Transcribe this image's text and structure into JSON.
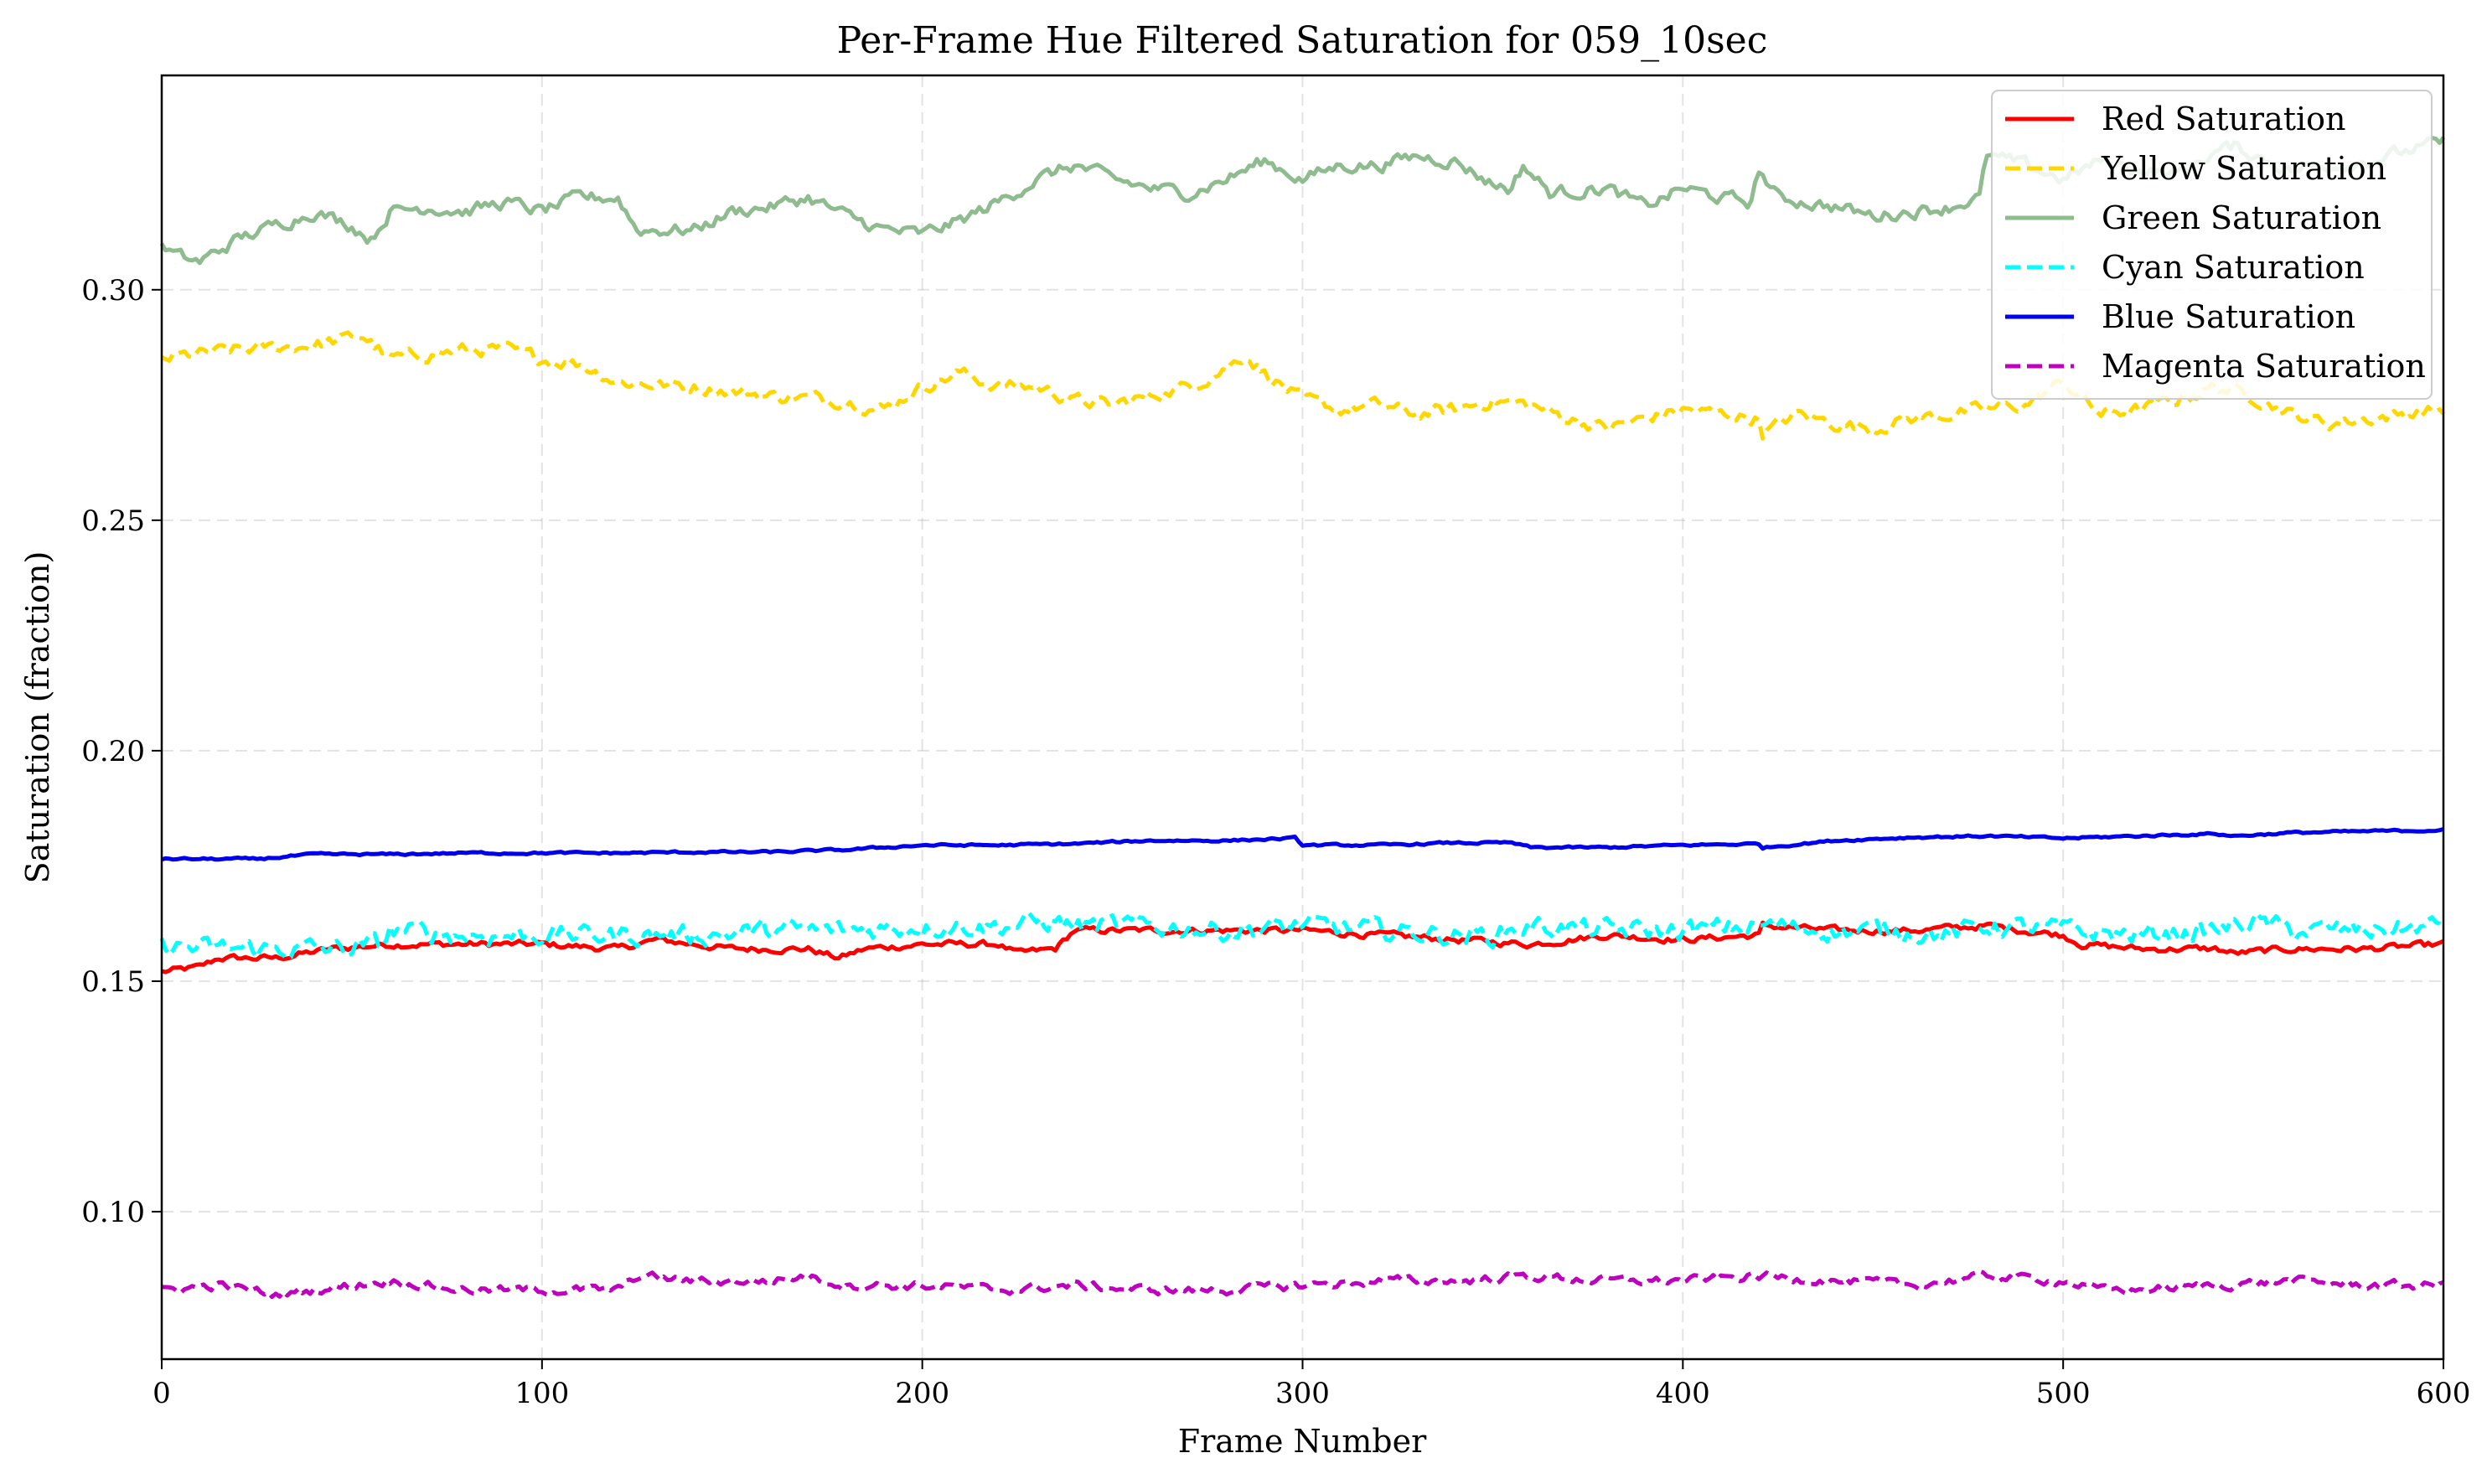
{
  "chart_data": {
    "type": "line",
    "title": "Per-Frame Hue Filtered Saturation for 059_10sec",
    "xlabel": "Frame Number",
    "ylabel": "Saturation (fraction)",
    "xlim": [
      0,
      600
    ],
    "ylim": [
      0.068,
      0.3465
    ],
    "xticks": [
      0,
      100,
      200,
      300,
      400,
      500,
      600
    ],
    "yticks": [
      0.1,
      0.15,
      0.2,
      0.25,
      0.3
    ],
    "xtick_labels": [
      "0",
      "100",
      "200",
      "300",
      "400",
      "500",
      "600"
    ],
    "ytick_labels": [
      "0.10",
      "0.15",
      "0.20",
      "0.25",
      "0.30"
    ],
    "grid": true,
    "legend_position": "top-right",
    "series": [
      {
        "name": "Red Saturation",
        "color": "#ff0000",
        "dash": "solid",
        "noise": 0.0006,
        "x": [
          0,
          10,
          15,
          30,
          45,
          60,
          90,
          100,
          120,
          130,
          150,
          170,
          178,
          185,
          200,
          220,
          225,
          235,
          240,
          260,
          280,
          300,
          320,
          340,
          360,
          380,
          400,
          420,
          421,
          440,
          460,
          480,
          500,
          505,
          520,
          540,
          545,
          560,
          580,
          600
        ],
        "values": [
          0.152,
          0.153,
          0.155,
          0.155,
          0.157,
          0.158,
          0.158,
          0.158,
          0.157,
          0.159,
          0.157,
          0.157,
          0.155,
          0.157,
          0.158,
          0.158,
          0.156,
          0.157,
          0.161,
          0.161,
          0.161,
          0.161,
          0.16,
          0.159,
          0.158,
          0.16,
          0.159,
          0.16,
          0.162,
          0.161,
          0.161,
          0.162,
          0.16,
          0.158,
          0.157,
          0.157,
          0.156,
          0.157,
          0.157,
          0.158
        ]
      },
      {
        "name": "Yellow Saturation",
        "color": "#ffd700",
        "dash": "dashed",
        "noise": 0.0012,
        "x": [
          0,
          20,
          40,
          53,
          60,
          80,
          90,
          100,
          110,
          120,
          140,
          160,
          180,
          190,
          200,
          210,
          220,
          230,
          240,
          250,
          260,
          270,
          280,
          285,
          290,
          300,
          310,
          320,
          330,
          340,
          350,
          360,
          370,
          380,
          390,
          400,
          410,
          420,
          421,
          430,
          440,
          450,
          460,
          470,
          480,
          490,
          500,
          510,
          520,
          530,
          540,
          550,
          560,
          570,
          580,
          590,
          600
        ],
        "values": [
          0.285,
          0.287,
          0.288,
          0.29,
          0.285,
          0.287,
          0.287,
          0.285,
          0.284,
          0.28,
          0.279,
          0.277,
          0.276,
          0.274,
          0.279,
          0.282,
          0.279,
          0.279,
          0.276,
          0.275,
          0.277,
          0.279,
          0.283,
          0.286,
          0.282,
          0.276,
          0.274,
          0.275,
          0.273,
          0.274,
          0.276,
          0.275,
          0.272,
          0.27,
          0.272,
          0.274,
          0.273,
          0.272,
          0.269,
          0.273,
          0.271,
          0.27,
          0.272,
          0.273,
          0.274,
          0.275,
          0.28,
          0.273,
          0.274,
          0.276,
          0.279,
          0.277,
          0.273,
          0.271,
          0.272,
          0.273,
          0.274
        ]
      },
      {
        "name": "Green Saturation",
        "color": "#8fbc8f",
        "dash": "solid",
        "noise": 0.0012,
        "x": [
          0,
          5,
          10,
          20,
          30,
          40,
          50,
          55,
          60,
          70,
          80,
          90,
          100,
          110,
          120,
          125,
          140,
          150,
          160,
          170,
          180,
          190,
          200,
          210,
          220,
          230,
          240,
          250,
          260,
          270,
          280,
          290,
          300,
          310,
          320,
          330,
          340,
          350,
          355,
          358,
          365,
          380,
          390,
          400,
          410,
          418,
          420,
          425,
          440,
          450,
          460,
          470,
          478,
          480,
          490,
          500,
          510,
          520,
          530,
          540,
          545,
          560,
          570,
          580,
          590,
          600
        ],
        "values": [
          0.309,
          0.307,
          0.306,
          0.311,
          0.314,
          0.317,
          0.314,
          0.311,
          0.317,
          0.318,
          0.317,
          0.319,
          0.317,
          0.32,
          0.32,
          0.313,
          0.313,
          0.317,
          0.318,
          0.32,
          0.316,
          0.313,
          0.312,
          0.315,
          0.319,
          0.324,
          0.327,
          0.324,
          0.322,
          0.321,
          0.324,
          0.328,
          0.324,
          0.327,
          0.327,
          0.329,
          0.328,
          0.323,
          0.322,
          0.327,
          0.321,
          0.322,
          0.318,
          0.322,
          0.32,
          0.319,
          0.326,
          0.32,
          0.318,
          0.316,
          0.317,
          0.318,
          0.32,
          0.329,
          0.327,
          0.324,
          0.328,
          0.326,
          0.325,
          0.33,
          0.331,
          0.326,
          0.327,
          0.328,
          0.33,
          0.332
        ]
      },
      {
        "name": "Cyan Saturation",
        "color": "#00ffff",
        "dash": "dashed",
        "noise": 0.0018,
        "x": [
          0,
          10,
          30,
          50,
          55,
          58,
          60,
          80,
          100,
          120,
          140,
          160,
          180,
          200,
          220,
          235,
          240,
          260,
          280,
          300,
          320,
          340,
          350,
          360,
          380,
          400,
          420,
          440,
          460,
          470,
          480,
          500,
          520,
          540,
          550,
          560,
          580,
          600
        ],
        "values": [
          0.158,
          0.157,
          0.157,
          0.157,
          0.158,
          0.158,
          0.161,
          0.16,
          0.16,
          0.16,
          0.16,
          0.161,
          0.161,
          0.162,
          0.162,
          0.163,
          0.162,
          0.162,
          0.161,
          0.162,
          0.161,
          0.16,
          0.16,
          0.162,
          0.161,
          0.161,
          0.162,
          0.161,
          0.161,
          0.16,
          0.162,
          0.161,
          0.16,
          0.161,
          0.163,
          0.161,
          0.161,
          0.162
        ]
      },
      {
        "name": "Blue Saturation",
        "color": "#0000ee",
        "dash": "solid",
        "noise": 0.0002,
        "x": [
          0,
          25,
          40,
          60,
          80,
          100,
          120,
          140,
          160,
          180,
          200,
          220,
          240,
          260,
          280,
          298,
          300,
          320,
          340,
          355,
          360,
          380,
          400,
          420,
          421,
          440,
          460,
          480,
          500,
          520,
          540,
          545,
          560,
          580,
          600
        ],
        "values": [
          0.1765,
          0.1765,
          0.1775,
          0.1775,
          0.1778,
          0.1778,
          0.1778,
          0.178,
          0.178,
          0.1785,
          0.1795,
          0.1795,
          0.1798,
          0.1805,
          0.1805,
          0.181,
          0.1795,
          0.1795,
          0.18,
          0.18,
          0.179,
          0.179,
          0.1795,
          0.1798,
          0.179,
          0.1805,
          0.1812,
          0.1815,
          0.181,
          0.1815,
          0.182,
          0.1815,
          0.1822,
          0.1825,
          0.1828
        ]
      },
      {
        "name": "Magenta Saturation",
        "color": "#bf00bf",
        "dash": "dashed",
        "noise": 0.0008,
        "x": [
          0,
          15,
          30,
          40,
          50,
          60,
          80,
          100,
          120,
          125,
          140,
          160,
          170,
          180,
          200,
          220,
          240,
          260,
          280,
          300,
          320,
          340,
          360,
          380,
          400,
          420,
          440,
          460,
          480,
          500,
          510,
          520,
          540,
          560,
          580,
          600
        ],
        "values": [
          0.083,
          0.084,
          0.082,
          0.083,
          0.084,
          0.085,
          0.083,
          0.083,
          0.083,
          0.086,
          0.085,
          0.085,
          0.086,
          0.084,
          0.084,
          0.083,
          0.084,
          0.083,
          0.083,
          0.084,
          0.085,
          0.085,
          0.086,
          0.085,
          0.085,
          0.086,
          0.085,
          0.084,
          0.086,
          0.085,
          0.083,
          0.083,
          0.084,
          0.085,
          0.084,
          0.084
        ]
      }
    ]
  }
}
